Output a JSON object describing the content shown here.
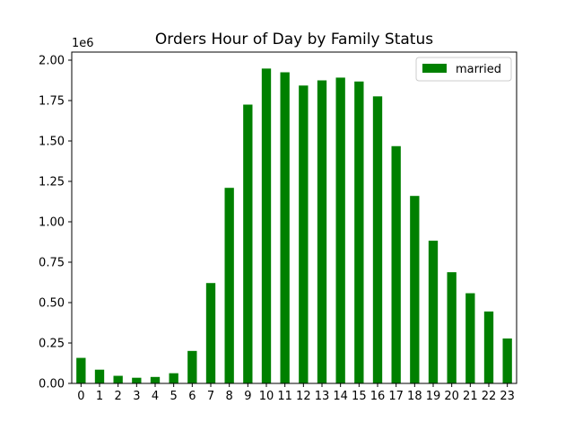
{
  "chart_data": {
    "type": "bar",
    "title": "Orders Hour of Day by Family Status",
    "xlabel": "",
    "ylabel": "",
    "y_offset_label": "1e6",
    "categories": [
      "0",
      "1",
      "2",
      "3",
      "4",
      "5",
      "6",
      "7",
      "8",
      "9",
      "10",
      "11",
      "12",
      "13",
      "14",
      "15",
      "16",
      "17",
      "18",
      "19",
      "20",
      "21",
      "22",
      "23"
    ],
    "series": [
      {
        "name": "married",
        "color": "#008000",
        "values": [
          158000,
          85000,
          47000,
          35000,
          40000,
          63000,
          201000,
          621000,
          1210000,
          1725000,
          1948000,
          1925000,
          1843000,
          1875000,
          1892000,
          1868000,
          1776000,
          1468000,
          1160000,
          883000,
          688000,
          558000,
          445000,
          278000
        ]
      }
    ],
    "ylim": [
      0,
      2050000
    ],
    "yticks": [
      0,
      250000,
      500000,
      750000,
      1000000,
      1250000,
      1500000,
      1750000,
      2000000
    ],
    "ytick_labels": [
      "0.00",
      "0.25",
      "0.50",
      "0.75",
      "1.00",
      "1.25",
      "1.50",
      "1.75",
      "2.00"
    ],
    "legend_position": "top-right",
    "grid": false
  }
}
